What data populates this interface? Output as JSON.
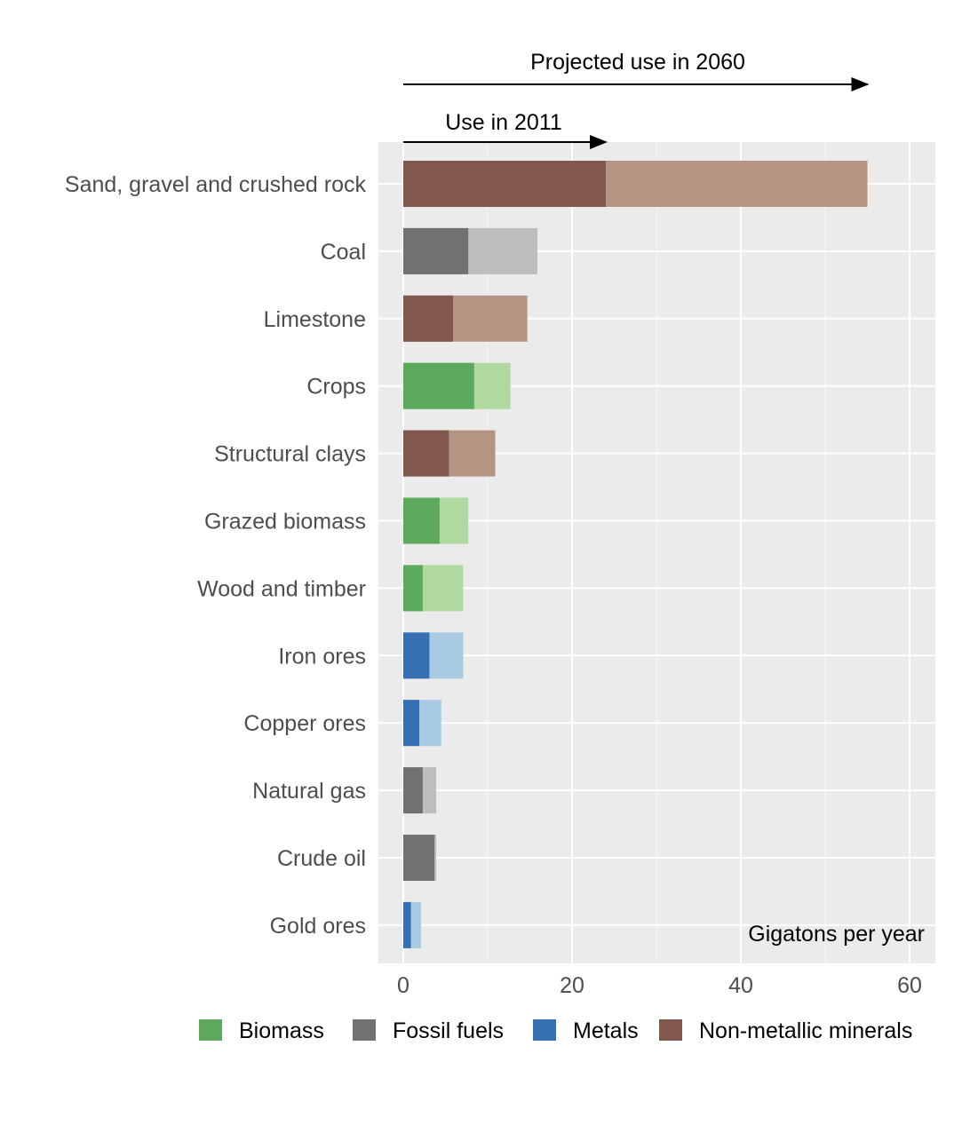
{
  "chart_data": {
    "type": "bar",
    "orientation": "horizontal",
    "title": "",
    "xlabel": "Gigatons per year",
    "ylabel": "",
    "xlim": [
      -3,
      63
    ],
    "x_ticks": [
      0,
      20,
      40,
      60
    ],
    "grid": true,
    "legend_placement": "bottom",
    "annotations": {
      "projected": "Projected use in 2060",
      "current": "Use in 2011"
    },
    "categories": [
      "Sand, gravel and crushed rock",
      "Coal",
      "Limestone",
      "Crops",
      "Structural clays",
      "Grazed biomass",
      "Wood and timber",
      "Iron ores",
      "Copper ores",
      "Natural gas",
      "Crude oil",
      "Gold ores"
    ],
    "groups": [
      "Non-metallic minerals",
      "Fossil fuels",
      "Non-metallic minerals",
      "Biomass",
      "Non-metallic minerals",
      "Biomass",
      "Biomass",
      "Metals",
      "Metals",
      "Fossil fuels",
      "Fossil fuels",
      "Metals"
    ],
    "series": [
      {
        "name": "Use in 2011",
        "values": [
          24.0,
          7.7,
          5.9,
          8.4,
          5.4,
          4.3,
          2.3,
          3.1,
          1.9,
          2.3,
          3.7,
          0.9
        ]
      },
      {
        "name": "Projected use in 2060",
        "values": [
          55.0,
          15.9,
          14.7,
          12.7,
          10.9,
          7.7,
          7.1,
          7.1,
          4.5,
          3.9,
          3.9,
          2.1
        ]
      }
    ],
    "legend": [
      {
        "name": "Biomass",
        "dark": "#5daa5f",
        "light": "#afd99f"
      },
      {
        "name": "Fossil fuels",
        "dark": "#717171",
        "light": "#bdbdbd"
      },
      {
        "name": "Metals",
        "dark": "#3670b3",
        "light": "#a8cbe3"
      },
      {
        "name": "Non-metallic minerals",
        "dark": "#82584d",
        "light": "#b69483"
      }
    ]
  }
}
